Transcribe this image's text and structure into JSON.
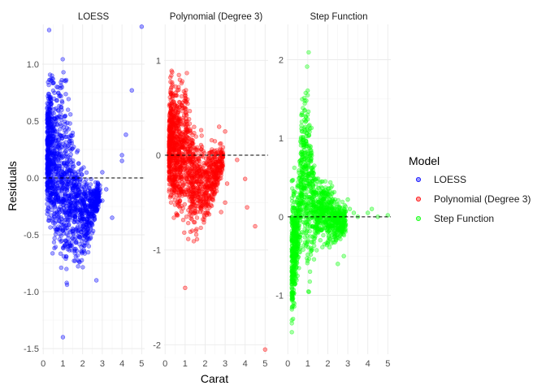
{
  "chart_data": {
    "type": "scatter",
    "xlabel": "Carat",
    "ylabel": "Residuals",
    "x_ticks": [
      0,
      1,
      2,
      3,
      4,
      5
    ],
    "reference_line": {
      "y": 0,
      "style": "dashed"
    },
    "legend": {
      "title": "Model",
      "placement": "right",
      "entries": [
        {
          "label": "LOESS",
          "color": "#0000FF"
        },
        {
          "label": "Polynomial (Degree 3)",
          "color": "#FF0000"
        },
        {
          "label": "Step Function",
          "color": "#00FF00"
        }
      ]
    },
    "panels": [
      {
        "name": "LOESS",
        "color": "#0000FF",
        "xlim": [
          -0.05,
          5.15
        ],
        "ylim": [
          -1.55,
          1.35
        ],
        "y_ticks": [
          -1.5,
          -1.0,
          -0.5,
          0.0,
          0.5,
          1.0
        ],
        "y_tick_labels": [
          "-1.5",
          "-1.0",
          "-0.5",
          "0.0",
          "0.5",
          "1.0"
        ],
        "envelope": [
          [
            0.2,
            -0.55,
            0.95
          ],
          [
            0.3,
            -0.6,
            1.15
          ],
          [
            0.4,
            -0.75,
            1.2
          ],
          [
            0.5,
            -0.9,
            1.1
          ],
          [
            0.7,
            -1.0,
            1.05
          ],
          [
            0.9,
            -1.1,
            1.25
          ],
          [
            1.0,
            -1.15,
            1.2
          ],
          [
            1.1,
            -1.12,
            1.05
          ],
          [
            1.3,
            -1.05,
            0.9
          ],
          [
            1.5,
            -1.0,
            0.6
          ],
          [
            1.7,
            -0.95,
            0.45
          ],
          [
            2.0,
            -0.9,
            0.25
          ],
          [
            2.3,
            -0.7,
            0.1
          ],
          [
            2.6,
            -0.5,
            0.05
          ],
          [
            2.9,
            -0.3,
            0.02
          ]
        ],
        "outliers": [
          [
            0.3,
            1.3
          ],
          [
            1.0,
            -1.4
          ],
          [
            2.7,
            -0.9
          ],
          [
            3.0,
            -0.2
          ],
          [
            3.2,
            -0.1
          ],
          [
            3.5,
            -0.35
          ],
          [
            4.0,
            0.2
          ],
          [
            4.0,
            0.15
          ],
          [
            4.2,
            0.38
          ],
          [
            4.5,
            0.77
          ],
          [
            5.0,
            1.33
          ],
          [
            3.0,
            0.05
          ],
          [
            2.8,
            -0.15
          ]
        ]
      },
      {
        "name": "Polynomial (Degree 3)",
        "color": "#FF0000",
        "xlim": [
          -0.05,
          5.15
        ],
        "ylim": [
          -2.1,
          1.38
        ],
        "y_ticks": [
          -2,
          -1,
          0,
          1
        ],
        "y_tick_labels": [
          "-2",
          "-1",
          "0",
          "1"
        ],
        "envelope": [
          [
            0.2,
            -0.6,
            0.6
          ],
          [
            0.3,
            -0.7,
            1.25
          ],
          [
            0.4,
            -0.85,
            1.0
          ],
          [
            0.6,
            -0.9,
            0.95
          ],
          [
            0.8,
            -0.95,
            1.0
          ],
          [
            1.0,
            -1.05,
            1.28
          ],
          [
            1.2,
            -1.0,
            0.7
          ],
          [
            1.5,
            -1.0,
            0.4
          ],
          [
            1.8,
            -0.95,
            0.35
          ],
          [
            2.0,
            -0.9,
            0.3
          ],
          [
            2.3,
            -0.7,
            0.25
          ],
          [
            2.6,
            -0.5,
            0.2
          ],
          [
            2.9,
            -0.2,
            0.15
          ]
        ],
        "outliers": [
          [
            1.0,
            -1.4
          ],
          [
            2.7,
            0.3
          ],
          [
            3.0,
            0.25
          ],
          [
            3.1,
            -0.3
          ],
          [
            3.6,
            -0.05
          ],
          [
            4.0,
            -0.25
          ],
          [
            4.1,
            -0.55
          ],
          [
            4.5,
            -0.75
          ],
          [
            5.0,
            -2.05
          ],
          [
            2.8,
            -0.6
          ],
          [
            3.0,
            -0.5
          ]
        ]
      },
      {
        "name": "Step Function",
        "color": "#00FF00",
        "xlim": [
          -0.05,
          5.15
        ],
        "ylim": [
          -1.75,
          2.45
        ],
        "y_ticks": [
          -1,
          0,
          1,
          2
        ],
        "y_tick_labels": [
          "-1",
          "0",
          "1",
          "2"
        ],
        "envelope": [
          [
            0.2,
            -1.65,
            0.6
          ],
          [
            0.3,
            -1.6,
            0.7
          ],
          [
            0.45,
            -1.0,
            0.5
          ],
          [
            0.55,
            -0.9,
            0.85
          ],
          [
            0.7,
            -0.7,
            1.8
          ],
          [
            0.9,
            -0.8,
            2.2
          ],
          [
            1.0,
            -1.5,
            2.35
          ],
          [
            1.1,
            -1.1,
            1.9
          ],
          [
            1.3,
            -0.6,
            0.8
          ],
          [
            1.5,
            -0.5,
            0.6
          ],
          [
            1.7,
            -0.4,
            0.7
          ],
          [
            2.0,
            -0.6,
            0.72
          ],
          [
            2.2,
            -0.5,
            0.5
          ],
          [
            2.5,
            -0.4,
            0.25
          ],
          [
            2.9,
            -0.3,
            0.25
          ]
        ],
        "outliers": [
          [
            3.1,
            0.1
          ],
          [
            3.3,
            0.05
          ],
          [
            3.5,
            0.0
          ],
          [
            4.0,
            0.05
          ],
          [
            4.2,
            0.1
          ],
          [
            4.5,
            0.0
          ],
          [
            5.0,
            0.02
          ],
          [
            2.5,
            -0.6
          ],
          [
            2.8,
            -0.5
          ],
          [
            3.0,
            0.22
          ]
        ]
      }
    ]
  }
}
